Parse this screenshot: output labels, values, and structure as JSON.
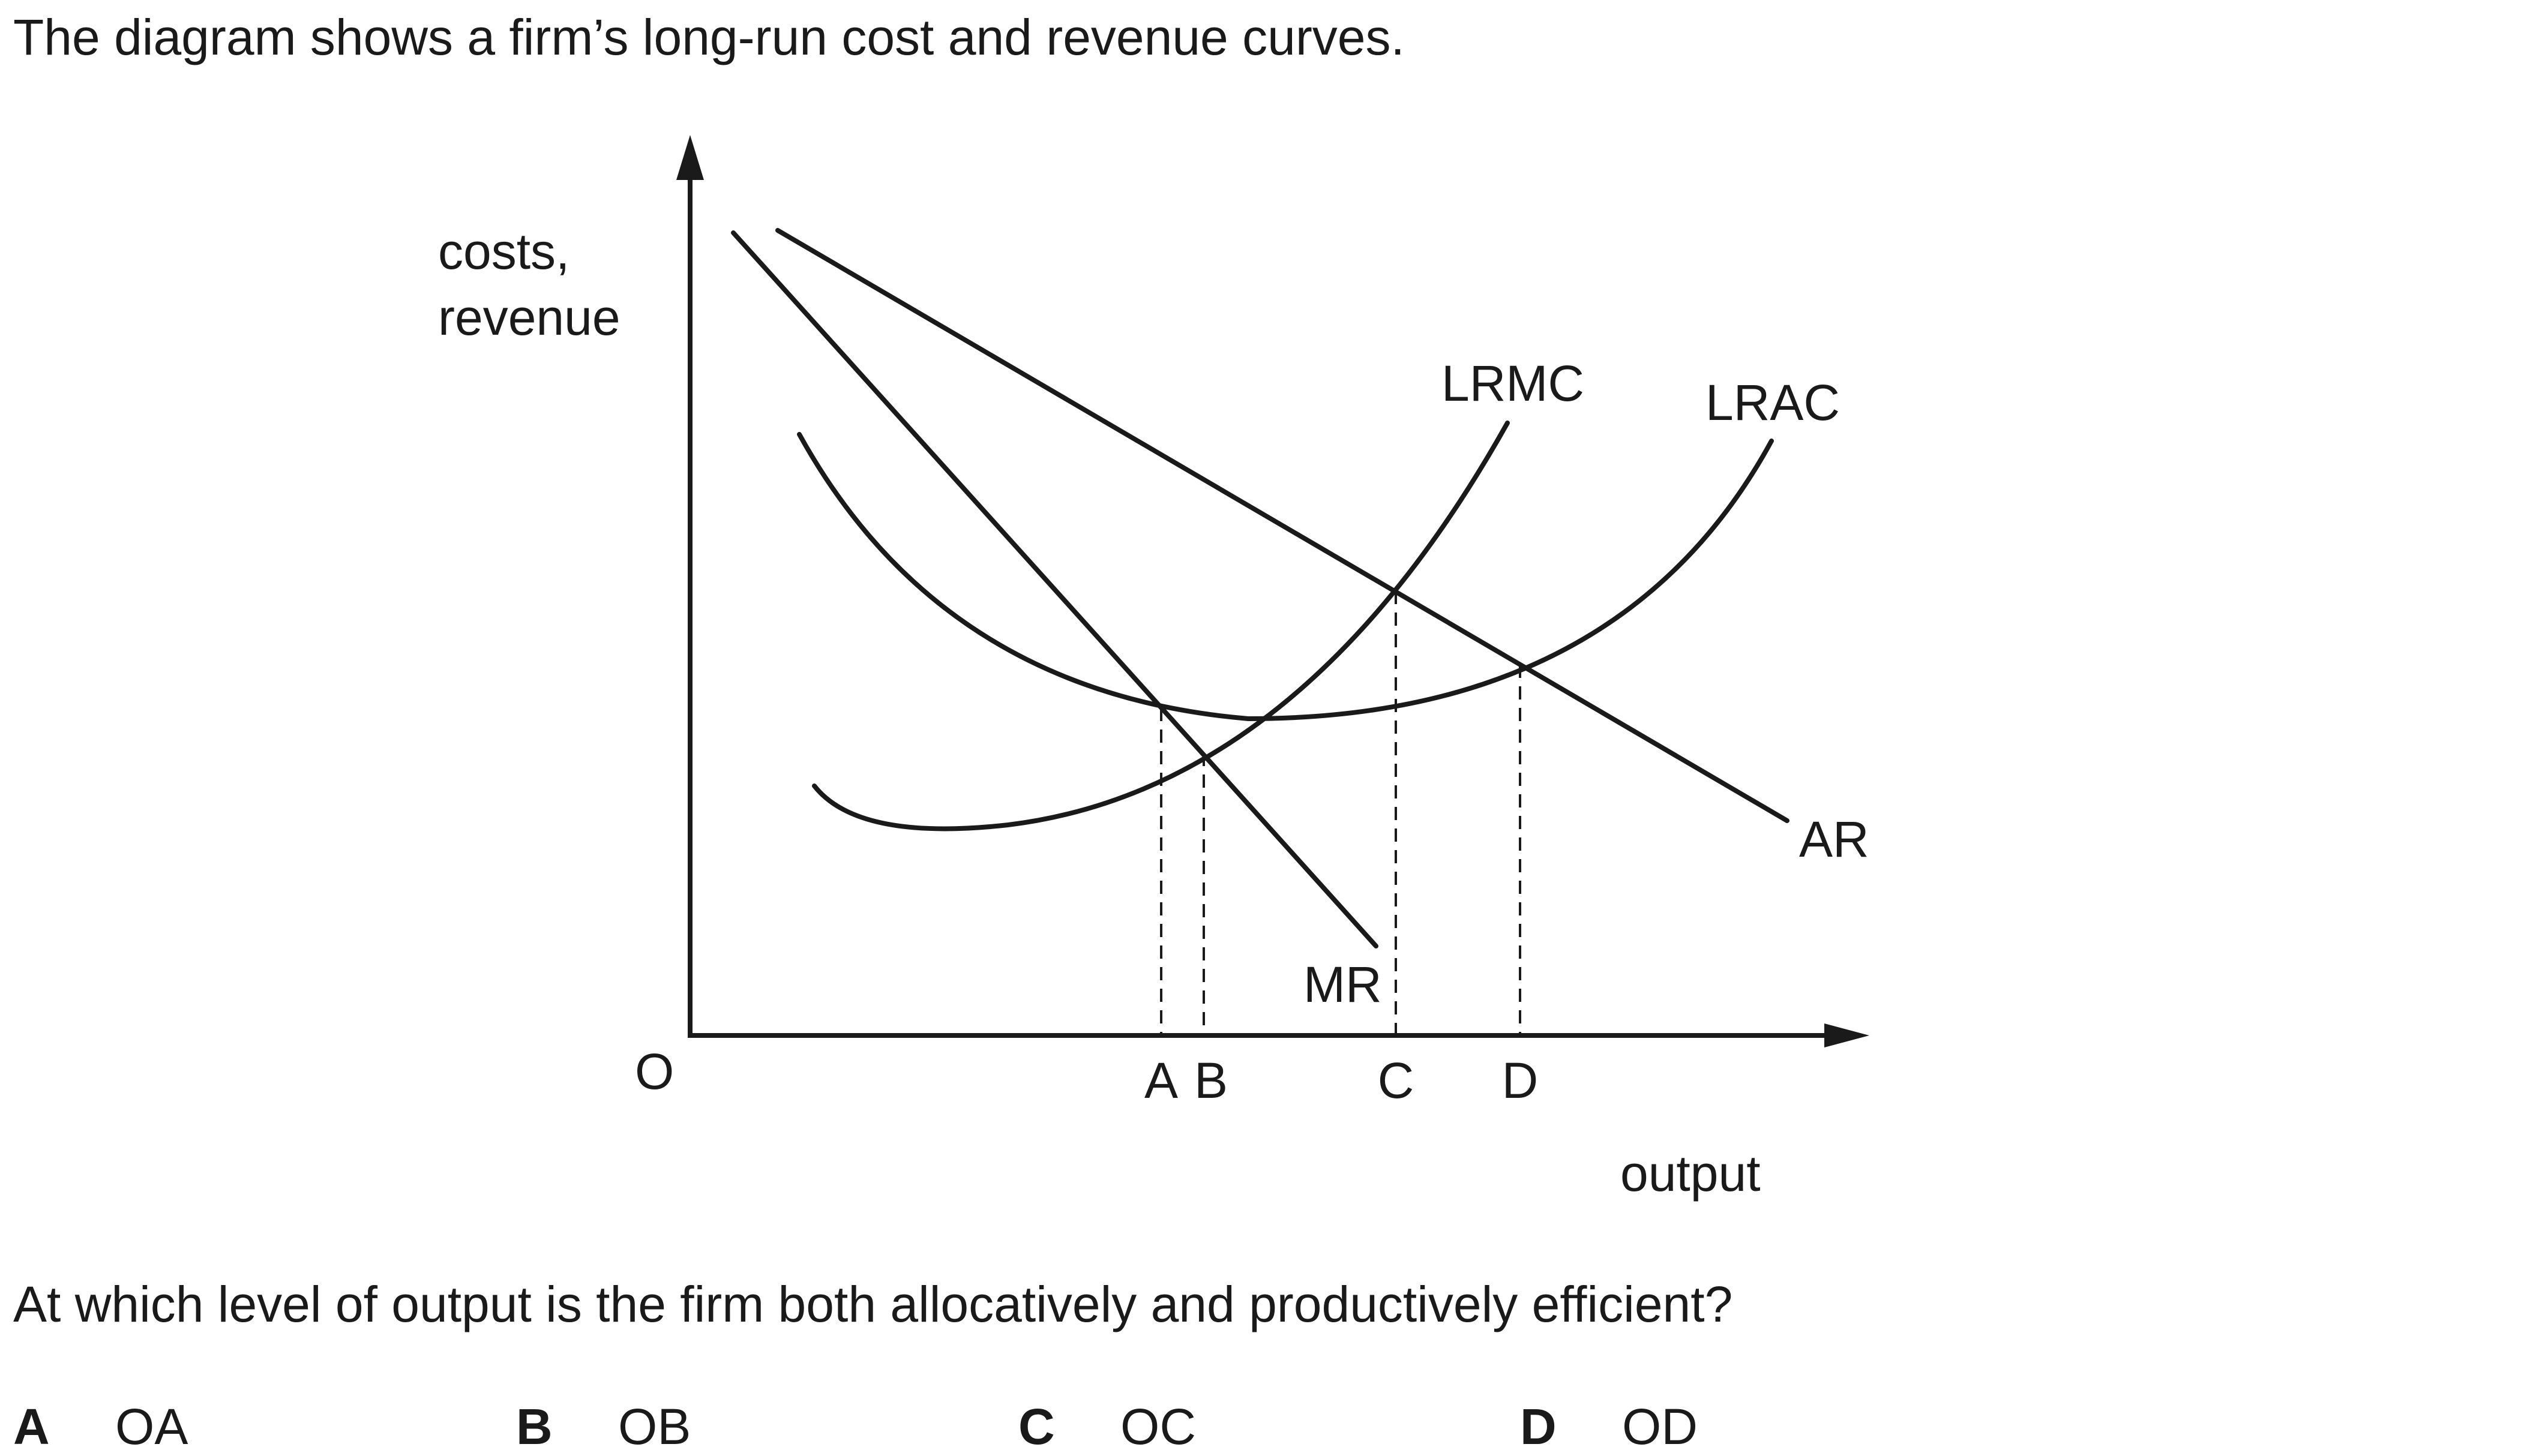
{
  "intro": "The diagram shows a firm’s long-run cost and revenue curves.",
  "diagram": {
    "y_axis_label_line1": "costs,",
    "y_axis_label_line2": "revenue",
    "x_axis_label": "output",
    "origin_label": "O",
    "curve_labels": {
      "lrmc": "LRMC",
      "lrac": "LRAC",
      "ar": "AR",
      "mr": "MR"
    },
    "output_markers": [
      "A",
      "B",
      "C",
      "D"
    ]
  },
  "question": "At which level of output is the firm both allocatively and productively efficient?",
  "options": [
    {
      "letter": "A",
      "text": "OA"
    },
    {
      "letter": "B",
      "text": "OB"
    },
    {
      "letter": "C",
      "text": "OC"
    },
    {
      "letter": "D",
      "text": "OD"
    }
  ]
}
